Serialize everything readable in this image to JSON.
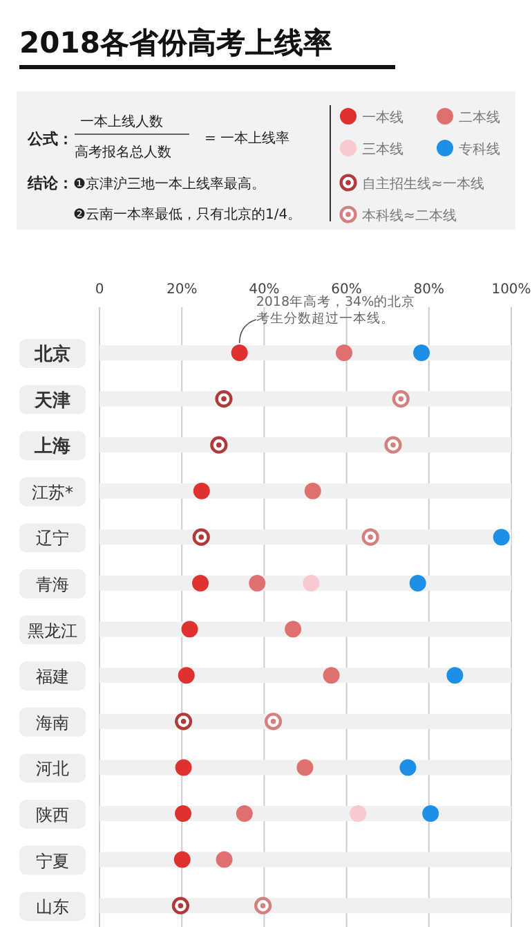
{
  "chart_data": {
    "type": "scatter",
    "title": "2018各省份高考上线率",
    "categories": [
      "北京",
      "天津",
      "上海",
      "江苏*",
      "辽宁",
      "青海",
      "黑龙江",
      "福建",
      "海南",
      "河北",
      "陕西",
      "宁夏",
      "山东"
    ],
    "series": [
      {
        "type": "bar",
        "color": "#f0f0f0",
        "values": [
          100,
          100,
          100,
          100,
          100,
          100,
          100,
          100,
          100,
          100,
          100,
          100,
          100
        ]
      },
      {
        "name": "一本线",
        "color": "#e03131",
        "marker": "circle",
        "values": [
          34,
          null,
          null,
          24.8,
          null,
          24.5,
          21.9,
          21.1,
          null,
          20.4,
          20.3,
          20.1,
          null
        ]
      },
      {
        "name": "二本线",
        "color": "#e07070",
        "marker": "circle",
        "values": [
          59.4,
          null,
          null,
          51.8,
          null,
          38.3,
          47.0,
          56.3,
          null,
          49.9,
          35.2,
          30.3,
          null
        ]
      },
      {
        "name": "三本线",
        "color": "#f9c8d0",
        "marker": "circle",
        "values": [
          null,
          null,
          null,
          null,
          null,
          51.4,
          null,
          null,
          null,
          null,
          62.8,
          null,
          null
        ]
      },
      {
        "name": "专科线",
        "color": "#1e8fe6",
        "marker": "circle",
        "values": [
          78.2,
          null,
          null,
          null,
          97.6,
          77.3,
          null,
          86.3,
          null,
          74.9,
          80.4,
          null,
          null
        ]
      },
      {
        "name": "自主招生线≈一本线",
        "color": "#b03a3a",
        "values": [
          null,
          30.2,
          29.0,
          null,
          24.7,
          null,
          null,
          null,
          20.4,
          null,
          null,
          null,
          19.7
        ]
      },
      {
        "name": "本科线≈二本线",
        "color": "#d48080",
        "values": [
          null,
          73.2,
          71.3,
          null,
          65.8,
          null,
          null,
          null,
          42.2,
          null,
          null,
          null,
          39.7
        ]
      }
    ],
    "orientation": "horizontal",
    "xlim": [
      0,
      100
    ],
    "xticks": [
      0,
      {
        "value": 20,
        "label": "20%"
      },
      {
        "value": 40,
        "label": "40%"
      },
      {
        "value": 60,
        "label": "60%"
      },
      {
        "value": 80,
        "label": "80%"
      },
      {
        "value": 100,
        "label": "100%"
      }
    ],
    "grid": "x",
    "legend": "top right",
    "annotations": [
      "公式：",
      "一本上线人数",
      "高考报名总人数",
      "= 一本上线率",
      "结论：",
      "❶京津沪三地一本上线率最高。",
      "❷云南一本率最低，只有北京的1/4。",
      {
        "text": "2018年高考，34%的北京考生分数超过一本线。",
        "x": 34,
        "y": "北京"
      }
    ]
  }
}
